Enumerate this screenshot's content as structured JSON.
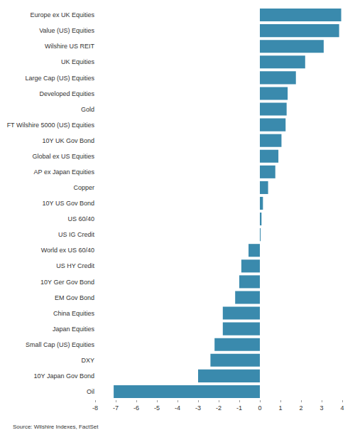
{
  "chart_data": {
    "type": "bar",
    "orientation": "horizontal",
    "categories": [
      "Europe ex UK Equities",
      "Value (US) Equities",
      "Wilshire US REIT",
      "UK Equities",
      "Large Cap (US) Equities",
      "Developed Equities",
      "Gold",
      "FT Wilshire 5000 (US) Equities",
      "10Y UK Gov Bond",
      "Global ex US Equities",
      "AP ex Japan Equities",
      "Copper",
      "10Y US Gov Bond",
      "US 60/40",
      "US IG Credit",
      "World ex US 60/40",
      "US HY Credit",
      "10Y Ger Gov Bond",
      "EM Gov Bond",
      "China Equities",
      "Japan Equities",
      "Small Cap (US) Equities",
      "DXY",
      "10Y Japan Gov Bond",
      "Oil"
    ],
    "values": [
      3.95,
      3.85,
      3.1,
      2.2,
      1.75,
      1.35,
      1.3,
      1.25,
      1.05,
      0.9,
      0.75,
      0.4,
      0.15,
      0.08,
      0.01,
      -0.55,
      -0.9,
      -1.0,
      -1.2,
      -1.8,
      -1.8,
      -2.2,
      -2.4,
      -3.0,
      -7.1
    ],
    "color": "#3a8aad",
    "xlim": [
      -8,
      4
    ],
    "xticks": [
      -8,
      -7,
      -6,
      -5,
      -4,
      -3,
      -2,
      -1,
      0,
      1,
      2,
      3,
      4
    ],
    "grid": false,
    "annotations": [
      "Source: Wilshire Indexes, FactSet"
    ]
  }
}
